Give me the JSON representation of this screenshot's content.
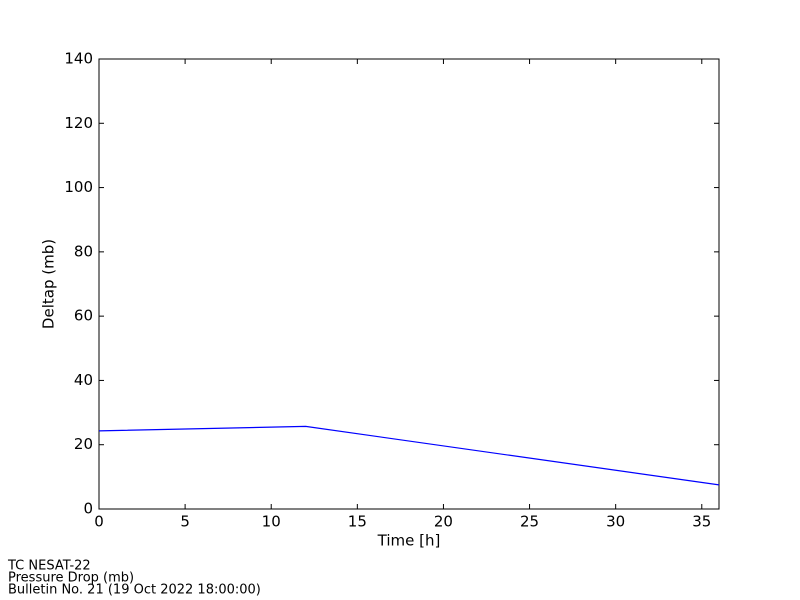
{
  "chart_data": {
    "type": "line",
    "x": [
      0,
      12,
      36
    ],
    "series": [
      {
        "name": "Deltap",
        "color": "#0000ff",
        "values": [
          24.3,
          25.7,
          7.5
        ]
      }
    ],
    "xlim": [
      0,
      36
    ],
    "xticks": [
      0,
      5,
      10,
      15,
      20,
      25,
      30,
      35
    ],
    "ylim": [
      0,
      140
    ],
    "yticks": [
      0,
      20,
      40,
      60,
      80,
      100,
      120,
      140
    ],
    "x_label": "Time [h]",
    "y_label": "Deltap (mb)",
    "footer": [
      "TC NESAT-22",
      "Pressure Drop (mb)",
      "Bulletin No. 21 (19 Oct 2022  18:00:00)"
    ]
  }
}
